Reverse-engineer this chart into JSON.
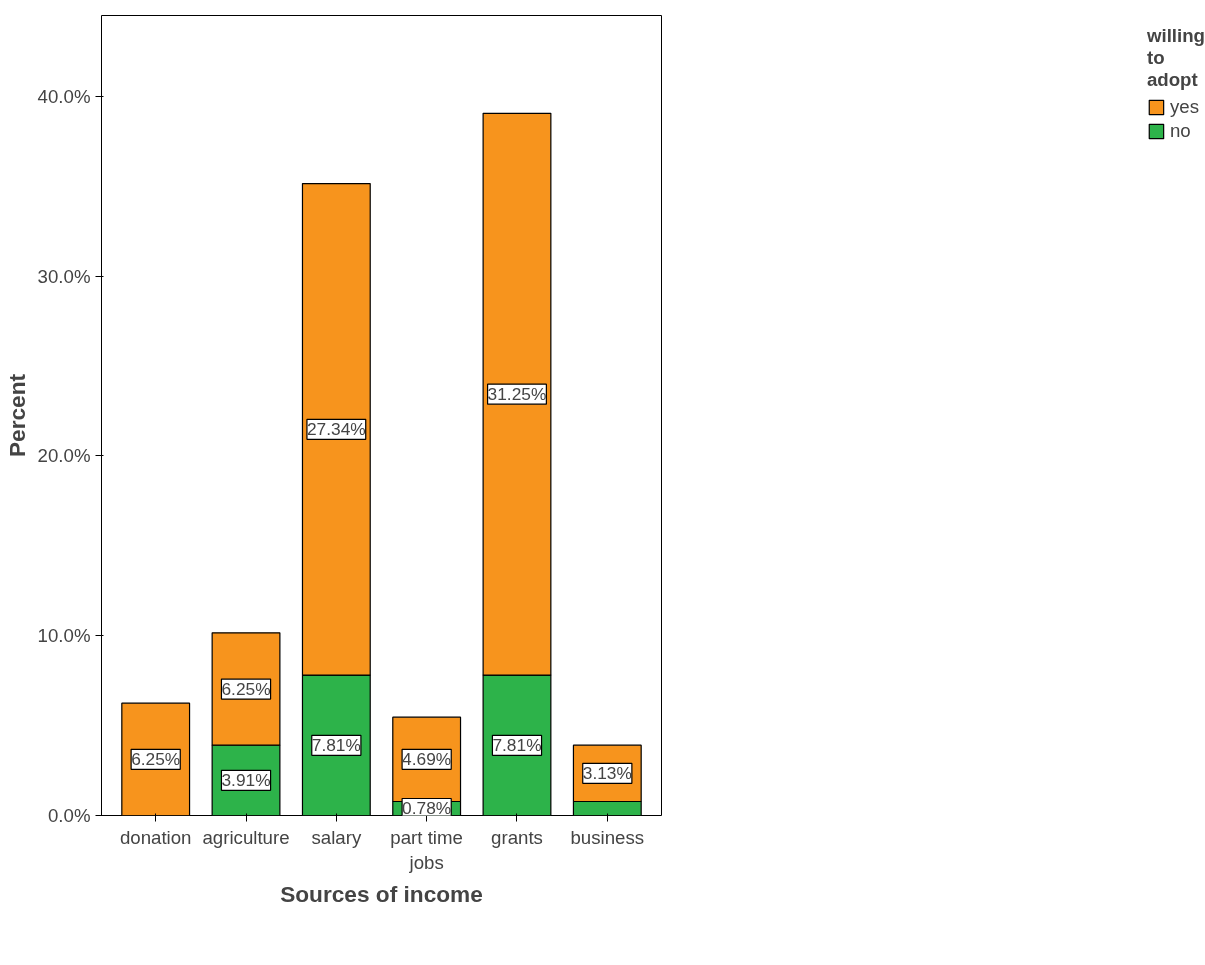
{
  "chart_data": {
    "type": "bar",
    "stacked": true,
    "xlabel": "Sources of income",
    "ylabel": "Percent",
    "legend_title": "willing to adopt",
    "legend": "top right",
    "grid": false,
    "categories": [
      "donation",
      "agriculture",
      "salary",
      "part time jobs",
      "grants",
      "business"
    ],
    "series": [
      {
        "name": "no",
        "color": "#2db34a",
        "values": [
          0,
          3.91,
          7.81,
          0.78,
          7.81,
          0.78
        ],
        "value_labels": [
          null,
          "3.91%",
          "7.81%",
          "0.78%",
          "7.81%",
          null
        ]
      },
      {
        "name": "yes",
        "color": "#f7941d",
        "values": [
          6.25,
          6.25,
          27.34,
          4.69,
          31.25,
          3.13
        ],
        "value_labels": [
          "6.25%",
          "6.25%",
          "27.34%",
          "4.69%",
          "31.25%",
          "3.13%"
        ]
      }
    ],
    "ylim": [
      0,
      44.5
    ],
    "yticks": [
      {
        "value": 0,
        "label": "0.0%"
      },
      {
        "value": 10,
        "label": "10.0%"
      },
      {
        "value": 20,
        "label": "20.0%"
      },
      {
        "value": 30,
        "label": "30.0%"
      },
      {
        "value": 40,
        "label": "40.0%"
      }
    ]
  }
}
